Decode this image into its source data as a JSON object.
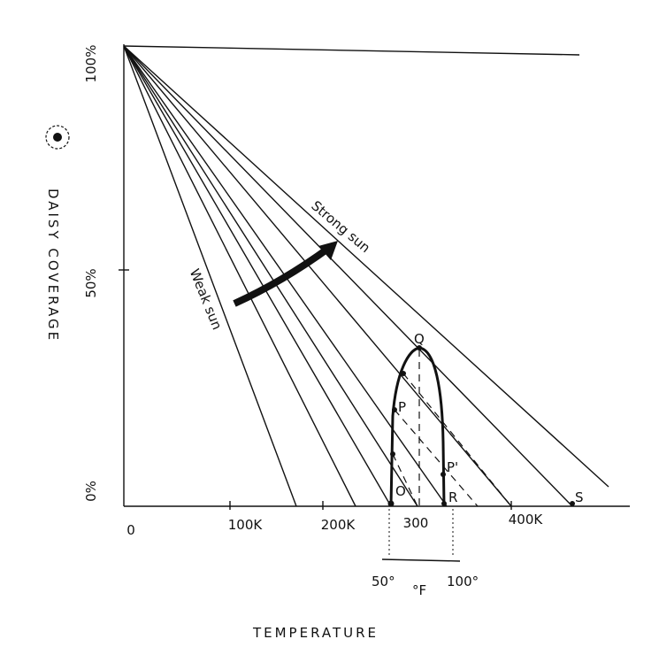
{
  "y_axis": {
    "label": "Daisy Coverage",
    "ticks": [
      "100%",
      "50%",
      "0%"
    ]
  },
  "x_axis": {
    "label": "Temperature",
    "ticks": [
      "0",
      "100K",
      "200K",
      "300",
      "400K"
    ]
  },
  "lines": {
    "strong": "Strong sun",
    "weak": "Weak sun"
  },
  "points": [
    "Q",
    "P",
    "P'",
    "O",
    "R",
    "S"
  ],
  "fahrenheit": {
    "low": "50°",
    "unit": "°F",
    "high": "100°"
  }
}
